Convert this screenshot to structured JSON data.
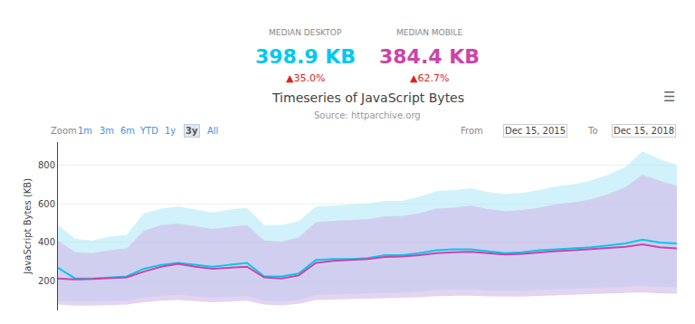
{
  "chart_data": {
    "type": "line",
    "title": "Timeseries of JavaScript Bytes",
    "subtitle": "Source: httparchive.org",
    "ylabel": "JavaScript Bytes (KB)",
    "categories": [
      null,
      null,
      null,
      null,
      null,
      null,
      null,
      null,
      null,
      null,
      null,
      null,
      null,
      null,
      null,
      null,
      null,
      null,
      null,
      null,
      null,
      null,
      null,
      null,
      null,
      null,
      null,
      null,
      null,
      null,
      null,
      null,
      null,
      null,
      null,
      null,
      null
    ],
    "series": [
      {
        "color": "#00c8f0",
        "values": [
          270,
          215,
          215,
          220,
          225,
          265,
          285,
          295,
          285,
          275,
          285,
          295,
          225,
          225,
          240,
          310,
          315,
          315,
          320,
          335,
          335,
          345,
          360,
          365,
          365,
          355,
          345,
          350,
          360,
          365,
          370,
          375,
          385,
          395,
          415,
          400,
          395
        ],
        "band": {
          "color": "#b3eaf7",
          "upper": [
            490,
            420,
            410,
            430,
            440,
            550,
            575,
            585,
            570,
            555,
            570,
            580,
            490,
            490,
            510,
            585,
            590,
            595,
            600,
            615,
            615,
            635,
            665,
            670,
            680,
            660,
            650,
            655,
            670,
            690,
            700,
            720,
            750,
            790,
            870,
            830,
            800
          ],
          "lower": [
            100,
            95,
            95,
            98,
            100,
            115,
            125,
            130,
            122,
            115,
            120,
            125,
            100,
            95,
            105,
            130,
            133,
            135,
            137,
            142,
            142,
            148,
            155,
            158,
            158,
            153,
            150,
            151,
            156,
            160,
            162,
            165,
            168,
            173,
            178,
            172,
            170
          ]
        }
      },
      {
        "color": "#cc44aa",
        "values": [
          215,
          210,
          212,
          215,
          220,
          250,
          275,
          290,
          275,
          265,
          270,
          275,
          220,
          215,
          230,
          295,
          305,
          310,
          315,
          325,
          328,
          335,
          345,
          350,
          352,
          345,
          338,
          342,
          350,
          355,
          360,
          365,
          370,
          378,
          390,
          375,
          370
        ],
        "band": {
          "color": "#d0b8e8",
          "upper": [
            410,
            350,
            345,
            360,
            370,
            460,
            490,
            498,
            484,
            470,
            480,
            490,
            410,
            405,
            425,
            505,
            512,
            516,
            520,
            535,
            536,
            550,
            575,
            580,
            590,
            572,
            562,
            568,
            580,
            598,
            607,
            623,
            650,
            685,
            750,
            718,
            693
          ],
          "lower": [
            80,
            75,
            75,
            78,
            80,
            92,
            100,
            104,
            98,
            92,
            96,
            100,
            80,
            76,
            84,
            104,
            106,
            108,
            110,
            114,
            114,
            118,
            124,
            126,
            126,
            122,
            120,
            121,
            125,
            128,
            130,
            132,
            134,
            138,
            143,
            138,
            136
          ]
        }
      }
    ],
    "ylim": [
      50,
      920
    ],
    "yticks": [
      200,
      400,
      600,
      800
    ],
    "grid": true,
    "tick_labels": "y",
    "stats": [
      {
        "label": "MEDIAN DESKTOP",
        "value": "398.9 KB",
        "color": "#00c8f0",
        "change": {
          "text": "▲35.0%",
          "color": "#dd2222"
        }
      },
      {
        "label": "MEDIAN MOBILE",
        "value": "384.4 KB",
        "color": "#cc44aa",
        "change": {
          "text": "▲62.7%",
          "color": "#dd2222"
        }
      }
    ],
    "zoom_buttons": [
      "Zoom",
      "1m",
      "3m",
      "6m",
      "YTD",
      "1y",
      "3y",
      "All"
    ],
    "active_zoom": "3y",
    "from_label": "From",
    "from_date": "Dec 15, 2015",
    "to_label": "To",
    "to_date": "Dec 15, 2018",
    "menu_icon": "☰"
  }
}
